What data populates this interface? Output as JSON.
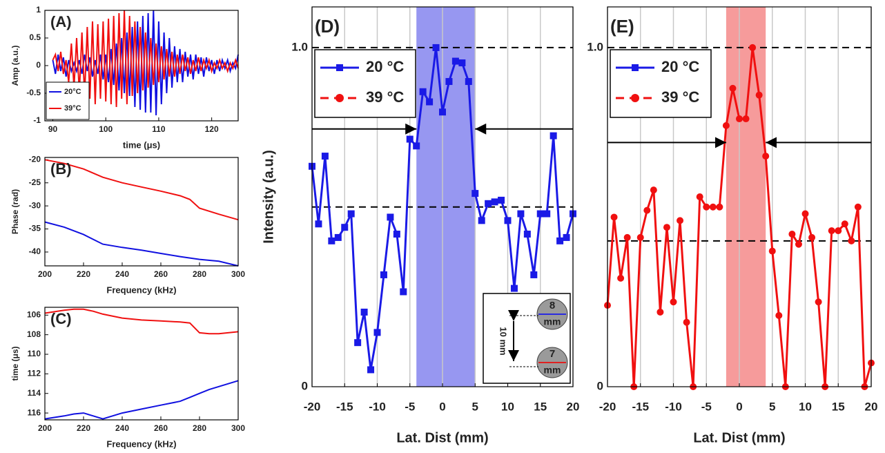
{
  "chart_data": [
    {
      "type": "line",
      "annotation": "(A)",
      "x_label": "time (μs)",
      "y_label": "Amp (a.u.)",
      "x": [
        90,
        90.5,
        91,
        91.5,
        92,
        92.5,
        93,
        93.5,
        94,
        94.5,
        95,
        95.5,
        96,
        96.5,
        97,
        97.5,
        98,
        98.5,
        99,
        99.5,
        100,
        100.5,
        101,
        101.5,
        102,
        102.5,
        103,
        103.5,
        104,
        104.5,
        105,
        105.5,
        106,
        106.5,
        107,
        107.5,
        108,
        108.5,
        109,
        109.5,
        110,
        110.5,
        111,
        111.5,
        112,
        112.5,
        113,
        113.5,
        114,
        114.5,
        115,
        115.5,
        116,
        116.5,
        117,
        117.5,
        118,
        118.5,
        119,
        119.5,
        120,
        120.5,
        121,
        121.5,
        122,
        122.5,
        123,
        123.5,
        124,
        124.5,
        125
      ],
      "series": [
        {
          "name": "20°C",
          "color": "#1010e0",
          "values": [
            0.1,
            -0.15,
            0.2,
            -0.1,
            0.15,
            -0.2,
            0.1,
            -0.1,
            0.05,
            -0.1,
            0.1,
            -0.15,
            0.2,
            -0.1,
            0.15,
            -0.2,
            0.1,
            -0.15,
            0.2,
            -0.25,
            0.2,
            -0.3,
            0.3,
            -0.35,
            0.4,
            -0.45,
            0.5,
            -0.5,
            0.6,
            -0.55,
            0.7,
            -0.75,
            0.8,
            -0.8,
            0.9,
            -0.85,
            0.95,
            -0.85,
            1.0,
            -0.9,
            0.8,
            -0.7,
            0.6,
            -0.5,
            0.5,
            -0.4,
            0.35,
            -0.3,
            0.3,
            -0.3,
            0.25,
            -0.2,
            0.2,
            -0.25,
            0.2,
            -0.15,
            0.15,
            -0.2,
            0.15,
            -0.1,
            0.1,
            -0.15,
            0.1,
            -0.1,
            0.1,
            -0.05,
            0.1,
            -0.1,
            0.05,
            -0.05,
            0.2
          ]
        },
        {
          "name": "39°C",
          "color": "#f01010",
          "values": [
            0.1,
            0.2,
            -0.1,
            0.25,
            -0.15,
            0.1,
            -0.3,
            0.4,
            -0.4,
            0.5,
            -0.5,
            0.6,
            -0.55,
            0.7,
            -0.6,
            0.8,
            -0.7,
            0.75,
            -0.6,
            0.8,
            -0.65,
            0.85,
            -0.7,
            0.9,
            -0.75,
            0.95,
            -0.6,
            1.0,
            -0.7,
            0.9,
            -0.55,
            0.8,
            -0.5,
            0.7,
            -0.45,
            0.6,
            -0.4,
            0.5,
            -0.35,
            0.4,
            -0.3,
            0.35,
            -0.25,
            0.3,
            -0.2,
            0.25,
            -0.2,
            0.2,
            -0.15,
            0.2,
            -0.1,
            0.15,
            -0.15,
            0.1,
            -0.1,
            0.15,
            -0.1,
            0.1,
            -0.05,
            0.1,
            -0.1,
            0.05,
            -0.05,
            0.1,
            -0.05,
            0.05,
            -0.1,
            0.05,
            -0.05,
            0.1,
            -0.05
          ]
        }
      ],
      "xlim": [
        88.5,
        125
      ],
      "xticks": [
        90,
        100,
        110,
        120
      ],
      "ylim": [
        -1,
        1
      ],
      "yticks": [
        -1,
        -0.5,
        0,
        0.5,
        1
      ],
      "legend": "lower left"
    },
    {
      "type": "line",
      "annotation": "(B)",
      "x_label": "Frequency (kHz)",
      "y_label": "Phase (rad)",
      "x": [
        200,
        210,
        220,
        230,
        240,
        250,
        260,
        270,
        275,
        280,
        290,
        300
      ],
      "series": [
        {
          "name": "39°C",
          "color": "#f01010",
          "values": [
            -20,
            -20.8,
            -22,
            -23.8,
            -25,
            -25.9,
            -26.8,
            -27.8,
            -28.6,
            -30.5,
            -31.8,
            -33
          ]
        },
        {
          "name": "20°C",
          "color": "#1010e0",
          "values": [
            -33.5,
            -34.6,
            -36.2,
            -38.3,
            -39,
            -39.6,
            -40.3,
            -41,
            -41.3,
            -41.6,
            -42,
            -43
          ]
        }
      ],
      "xlim": [
        200,
        300
      ],
      "xticks": [
        200,
        220,
        240,
        260,
        280,
        300
      ],
      "ylim": [
        -43,
        -19.5
      ],
      "yticks": [
        -20,
        -25,
        -30,
        -35,
        -40
      ]
    },
    {
      "type": "line",
      "annotation": "(C)",
      "x_label": "Frequency (kHz)",
      "y_label": "time (μs)",
      "x": [
        200,
        210,
        215,
        220,
        225,
        230,
        240,
        250,
        260,
        270,
        275,
        280,
        285,
        290,
        300
      ],
      "series": [
        {
          "name": "39°C",
          "color": "#f01010",
          "values": [
            105.8,
            105.5,
            105.4,
            105.4,
            105.6,
            105.9,
            106.3,
            106.5,
            106.6,
            106.7,
            106.8,
            107.8,
            107.9,
            107.9,
            107.7
          ]
        },
        {
          "name": "20°C",
          "color": "#1010e0",
          "values": [
            116.6,
            116.3,
            116.1,
            116.0,
            116.3,
            116.6,
            116.0,
            115.6,
            115.2,
            114.8,
            114.4,
            114.0,
            113.6,
            113.3,
            112.7
          ]
        }
      ],
      "xlim": [
        200,
        300
      ],
      "xticks": [
        200,
        220,
        240,
        260,
        280,
        300
      ],
      "ylim": [
        116.7,
        105.2
      ],
      "yticks": [
        106,
        108,
        110,
        112,
        114,
        116
      ]
    },
    {
      "type": "line",
      "annotation": "(D)",
      "x_label": "Lat. Dist (mm)",
      "y_label": "Intensity (a.u.)",
      "x": [
        -20,
        -19,
        -18,
        -17,
        -16,
        -15,
        -14,
        -13,
        -12,
        -11,
        -10,
        -9,
        -8,
        -7,
        -6,
        -5,
        -4,
        -3,
        -2,
        -1,
        0,
        1,
        2,
        3,
        4,
        5,
        6,
        7,
        8,
        9,
        10,
        11,
        12,
        13,
        14,
        15,
        16,
        17,
        18,
        19,
        20
      ],
      "series": [
        {
          "name": "20 °C",
          "color": "#1a1ae6",
          "marker": "square",
          "values": [
            0.65,
            0.48,
            0.68,
            0.43,
            0.44,
            0.47,
            0.51,
            0.13,
            0.22,
            0.05,
            0.16,
            0.33,
            0.5,
            0.45,
            0.28,
            0.73,
            0.71,
            0.87,
            0.84,
            1.0,
            0.81,
            0.9,
            0.96,
            0.955,
            0.9,
            0.57,
            0.49,
            0.54,
            0.545,
            0.55,
            0.49,
            0.29,
            0.51,
            0.45,
            0.33,
            0.51,
            0.51,
            0.74,
            0.43,
            0.44,
            0.51
          ]
        }
      ],
      "legend_entries": [
        {
          "name": "20 °C",
          "color": "#1a1ae6",
          "marker": "square",
          "dash": false
        },
        {
          "name": "39 °C",
          "color": "#f01010",
          "marker": "circle",
          "dash": true
        }
      ],
      "xlim": [
        -20,
        20
      ],
      "xticks": [
        -20,
        -15,
        -10,
        -5,
        0,
        5,
        10,
        15,
        20
      ],
      "ylim": [
        0,
        1.12
      ],
      "yticks": [
        0,
        {
          "value": 1,
          "label": "1.0"
        }
      ],
      "grid": true,
      "shaded_region": [
        -4,
        5
      ],
      "shade_color": "#8c8cf0",
      "reference_lines": [
        1,
        0.53
      ],
      "arrow_level": 0.76,
      "inset": {
        "distance": "10 mm",
        "top": [
          "8",
          "mm"
        ],
        "bottom": [
          "7",
          "mm"
        ]
      }
    },
    {
      "type": "line",
      "annotation": "(E)",
      "x_label": "Lat. Dist (mm)",
      "x": [
        -20,
        -19,
        -18,
        -17,
        -16,
        -15,
        -14,
        -13,
        -12,
        -11,
        -10,
        -9,
        -8,
        -7,
        -6,
        -5,
        -4,
        -3,
        -2,
        -1,
        0,
        1,
        2,
        3,
        4,
        5,
        6,
        7,
        8,
        9,
        10,
        11,
        12,
        13,
        14,
        15,
        16,
        17,
        18,
        19,
        20
      ],
      "series": [
        {
          "name": "39 °C",
          "color": "#f01010",
          "marker": "circle",
          "values": [
            0.24,
            0.5,
            0.32,
            0.44,
            0,
            0.44,
            0.52,
            0.58,
            0.22,
            0.47,
            0.25,
            0.49,
            0.19,
            0,
            0.56,
            0.53,
            0.53,
            0.53,
            0.77,
            0.88,
            0.79,
            0.79,
            1.0,
            0.86,
            0.68,
            0.4,
            0.21,
            0,
            0.45,
            0.42,
            0.51,
            0.44,
            0.25,
            0,
            0.46,
            0.46,
            0.48,
            0.43,
            0.53,
            0,
            0.07
          ]
        }
      ],
      "legend_entries": [
        {
          "name": "20 °C",
          "color": "#1a1ae6",
          "marker": "square",
          "dash": false
        },
        {
          "name": "39 °C",
          "color": "#f01010",
          "marker": "circle",
          "dash": true
        }
      ],
      "xlim": [
        -20,
        20
      ],
      "xticks": [
        -20,
        -15,
        -10,
        -5,
        0,
        5,
        10,
        15,
        20
      ],
      "ylim": [
        0,
        1.12
      ],
      "yticks": [
        0,
        {
          "value": 1,
          "label": "1.0"
        }
      ],
      "grid": true,
      "shaded_region": [
        -2,
        4
      ],
      "shade_color": "#f59090",
      "reference_lines": [
        1,
        0.43
      ],
      "arrow_level": 0.72
    }
  ]
}
